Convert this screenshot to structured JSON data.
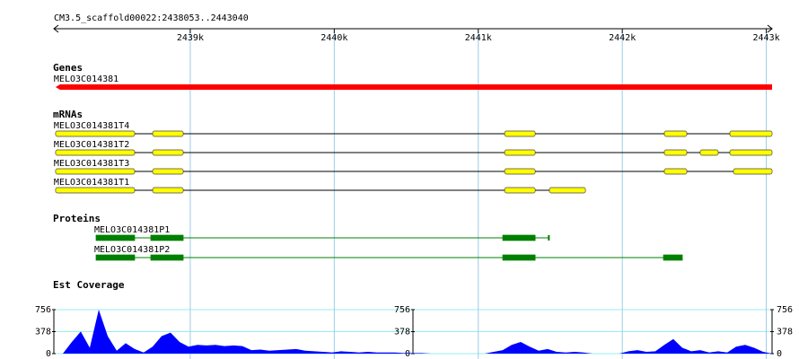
{
  "ruler": {
    "title": "CM3.5_scaffold00022:2438053..2443040",
    "range": [
      2438053,
      2443040
    ],
    "ticks": [
      {
        "value": 2439000,
        "label": "2439k"
      },
      {
        "value": 2440000,
        "label": "2440k"
      },
      {
        "value": 2441000,
        "label": "2441k"
      },
      {
        "value": 2442000,
        "label": "2442k"
      },
      {
        "value": 2443000,
        "label": "2443k"
      }
    ]
  },
  "genes": {
    "title": "Genes",
    "features": [
      {
        "name": "MELO3C014381",
        "start": 2438065,
        "end": 2443040
      }
    ]
  },
  "mrnas": {
    "title": "mRNAs",
    "features": [
      {
        "name": "MELO3C014381T4",
        "exons": [
          [
            2438065,
            2438614
          ],
          [
            2438739,
            2438951
          ],
          [
            2441183,
            2441395
          ],
          [
            2442292,
            2442448
          ],
          [
            2442747,
            2443040
          ]
        ]
      },
      {
        "name": "MELO3C014381T2",
        "exons": [
          [
            2438065,
            2438614
          ],
          [
            2438739,
            2438951
          ],
          [
            2441183,
            2441395
          ],
          [
            2442292,
            2442448
          ],
          [
            2442541,
            2442666
          ],
          [
            2442747,
            2443040
          ]
        ]
      },
      {
        "name": "MELO3C014381T3",
        "exons": [
          [
            2438065,
            2438614
          ],
          [
            2438739,
            2438951
          ],
          [
            2441183,
            2441395
          ],
          [
            2442292,
            2442448
          ],
          [
            2442772,
            2443040
          ]
        ]
      },
      {
        "name": "MELO3C014381T1",
        "exons": [
          [
            2438065,
            2438614
          ],
          [
            2438739,
            2438951
          ],
          [
            2441183,
            2441395
          ],
          [
            2441494,
            2441744
          ]
        ]
      }
    ]
  },
  "proteins": {
    "title": "Proteins",
    "features": [
      {
        "name": "MELO3C014381P1",
        "exons": [
          [
            2438346,
            2438614
          ],
          [
            2438726,
            2438951
          ],
          [
            2441170,
            2441395
          ],
          [
            2441482,
            2441490
          ]
        ]
      },
      {
        "name": "MELO3C014381P2",
        "exons": [
          [
            2438346,
            2438614
          ],
          [
            2438726,
            2438951
          ],
          [
            2441170,
            2441395
          ],
          [
            2442286,
            2442417
          ]
        ]
      }
    ]
  },
  "coverage": {
    "title": "Est Coverage",
    "ylim": [
      0,
      756
    ],
    "yticks": [
      0,
      378,
      756
    ],
    "values": [
      0,
      0,
      200,
      380,
      100,
      756,
      300,
      50,
      180,
      80,
      20,
      120,
      300,
      360,
      200,
      120,
      150,
      140,
      150,
      130,
      140,
      130,
      60,
      70,
      50,
      60,
      70,
      80,
      50,
      40,
      30,
      20,
      40,
      30,
      20,
      30,
      20,
      20,
      20,
      10,
      10,
      10,
      0,
      0,
      0,
      0,
      0,
      0,
      0,
      30,
      60,
      150,
      200,
      120,
      50,
      80,
      30,
      20,
      30,
      20,
      0,
      0,
      0,
      0,
      40,
      60,
      30,
      40,
      150,
      250,
      100,
      40,
      60,
      20,
      40,
      20,
      120,
      150,
      100,
      30,
      0
    ]
  }
}
